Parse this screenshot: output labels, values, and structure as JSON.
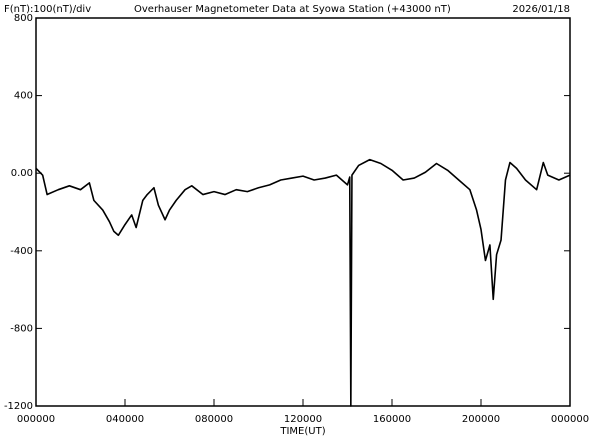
{
  "chart_data": {
    "type": "line",
    "title": "Overhauser Magnetometer Data at Syowa Station (+43000 nT)",
    "scale_label": "F(nT):100(nT)/div",
    "date": "2026/01/18",
    "x_label": "TIME(UT)",
    "x": [
      0,
      0.3,
      0.5,
      1,
      1.5,
      2,
      2.4,
      2.6,
      3,
      3.3,
      3.5,
      3.7,
      4,
      4.3,
      4.5,
      4.8,
      5,
      5.3,
      5.5,
      5.8,
      6,
      6.3,
      6.7,
      7,
      7.5,
      8,
      8.5,
      9,
      9.5,
      10,
      10.5,
      11,
      11.5,
      12,
      12.5,
      13,
      13.5,
      14,
      14.1,
      14.15,
      14.2,
      14.5,
      15,
      15.5,
      16,
      16.5,
      17,
      17.5,
      18,
      18.5,
      19,
      19.5,
      19.8,
      20,
      20.2,
      20.4,
      20.55,
      20.7,
      20.9,
      21.1,
      21.3,
      21.6,
      22,
      22.5,
      22.8,
      23,
      23.5,
      24
    ],
    "series": [
      {
        "name": "F",
        "color": "#000000",
        "values": [
          25,
          -10,
          -110,
          -85,
          -65,
          -85,
          -50,
          -140,
          -190,
          -250,
          -300,
          -320,
          -265,
          -215,
          -280,
          -140,
          -110,
          -75,
          -165,
          -240,
          -190,
          -140,
          -85,
          -65,
          -110,
          -95,
          -110,
          -85,
          -95,
          -75,
          -60,
          -35,
          -25,
          -15,
          -35,
          -25,
          -10,
          -60,
          -20,
          -1200,
          -10,
          40,
          70,
          50,
          15,
          -35,
          -25,
          5,
          50,
          15,
          -35,
          -85,
          -190,
          -290,
          -450,
          -370,
          -650,
          -420,
          -345,
          -35,
          55,
          25,
          -35,
          -85,
          55,
          -10,
          -35,
          -10
        ]
      }
    ],
    "xlim": [
      0,
      24
    ],
    "xticks": [
      {
        "value": 0,
        "label": "000000"
      },
      {
        "value": 4,
        "label": "040000"
      },
      {
        "value": 8,
        "label": "080000"
      },
      {
        "value": 12,
        "label": "120000"
      },
      {
        "value": 16,
        "label": "160000"
      },
      {
        "value": 20,
        "label": "200000"
      },
      {
        "value": 24,
        "label": "000000"
      }
    ],
    "ylim": [
      -1200,
      800
    ],
    "yticks": [
      -1200,
      -800,
      -400,
      {
        "value": 0,
        "label": "0.00"
      },
      400,
      800
    ]
  }
}
